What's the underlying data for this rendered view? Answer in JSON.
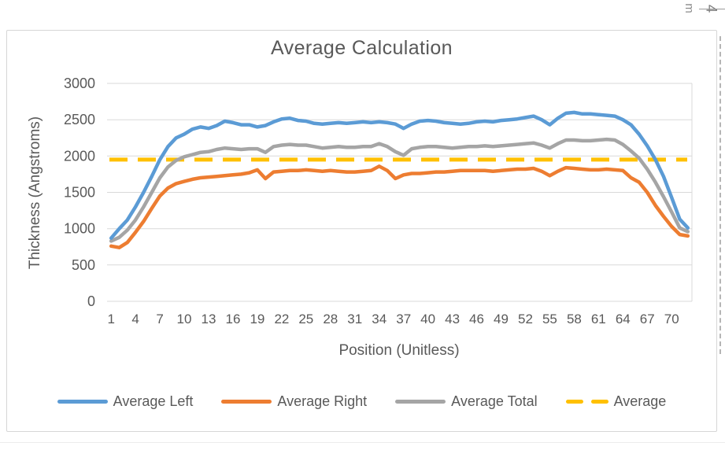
{
  "title": "Average Calculation",
  "y_axis": {
    "label": "Thickness (Angstroms)"
  },
  "x_axis": {
    "label": "Position (Unitless)"
  },
  "legend": {
    "items": [
      {
        "label": "Average Left",
        "color": "#5B9BD5",
        "style": "solid"
      },
      {
        "label": "Average Right",
        "color": "#ED7D31",
        "style": "solid"
      },
      {
        "label": "Average Total",
        "color": "#A5A5A5",
        "style": "solid"
      },
      {
        "label": "Average",
        "color": "#FFC000",
        "style": "dashed"
      }
    ]
  },
  "edge_fragments": {
    "top_left_glyph": "m",
    "top_right_glyph": "4"
  },
  "colors": {
    "text": "#595959",
    "gridline": "#D9D9D9",
    "blue": "#5B9BD5",
    "orange": "#ED7D31",
    "gray": "#A5A5A5",
    "yellow": "#FFC000"
  },
  "chart_data": {
    "type": "line",
    "title": "Average Calculation",
    "xlabel": "Position (Unitless)",
    "ylabel": "Thickness (Angstroms)",
    "ylim": [
      0,
      3000
    ],
    "y_ticks": [
      0,
      500,
      1000,
      1500,
      2000,
      2500,
      3000
    ],
    "grid": "horizontal",
    "legend_position": "bottom",
    "x": [
      1,
      2,
      3,
      4,
      5,
      6,
      7,
      8,
      9,
      10,
      11,
      12,
      13,
      14,
      15,
      16,
      17,
      18,
      19,
      20,
      21,
      22,
      23,
      24,
      25,
      26,
      27,
      28,
      29,
      30,
      31,
      32,
      33,
      34,
      35,
      36,
      37,
      38,
      39,
      40,
      41,
      42,
      43,
      44,
      45,
      46,
      47,
      48,
      49,
      50,
      51,
      52,
      53,
      54,
      55,
      56,
      57,
      58,
      59,
      60,
      61,
      62,
      63,
      64,
      65,
      66,
      67,
      68,
      69,
      70,
      71,
      72
    ],
    "x_tick_labels": [
      1,
      4,
      7,
      10,
      13,
      16,
      19,
      22,
      25,
      28,
      31,
      34,
      37,
      40,
      43,
      46,
      49,
      52,
      55,
      58,
      61,
      64,
      67,
      70
    ],
    "series": [
      {
        "name": "Average Left",
        "color": "#5B9BD5",
        "values": [
          870,
          1000,
          1120,
          1300,
          1500,
          1720,
          1950,
          2130,
          2250,
          2300,
          2370,
          2400,
          2380,
          2420,
          2480,
          2460,
          2430,
          2430,
          2400,
          2420,
          2470,
          2510,
          2520,
          2490,
          2480,
          2450,
          2440,
          2450,
          2460,
          2450,
          2460,
          2470,
          2460,
          2470,
          2460,
          2440,
          2380,
          2440,
          2480,
          2490,
          2480,
          2460,
          2450,
          2440,
          2450,
          2470,
          2480,
          2470,
          2490,
          2500,
          2510,
          2530,
          2550,
          2500,
          2430,
          2520,
          2590,
          2600,
          2580,
          2580,
          2570,
          2560,
          2550,
          2500,
          2430,
          2300,
          2140,
          1950,
          1720,
          1430,
          1130,
          1010
        ]
      },
      {
        "name": "Average Right",
        "color": "#ED7D31",
        "values": [
          760,
          740,
          810,
          950,
          1100,
          1280,
          1450,
          1560,
          1620,
          1650,
          1680,
          1700,
          1710,
          1720,
          1730,
          1740,
          1750,
          1770,
          1810,
          1690,
          1780,
          1790,
          1800,
          1800,
          1810,
          1800,
          1790,
          1800,
          1790,
          1780,
          1780,
          1790,
          1800,
          1860,
          1800,
          1690,
          1740,
          1760,
          1760,
          1770,
          1780,
          1780,
          1790,
          1800,
          1800,
          1800,
          1800,
          1790,
          1800,
          1810,
          1820,
          1820,
          1830,
          1790,
          1730,
          1790,
          1840,
          1830,
          1820,
          1810,
          1810,
          1820,
          1810,
          1800,
          1700,
          1640,
          1500,
          1320,
          1170,
          1030,
          920,
          900
        ]
      },
      {
        "name": "Average Total",
        "color": "#A5A5A5",
        "values": [
          830,
          880,
          980,
          1120,
          1300,
          1500,
          1700,
          1850,
          1940,
          1990,
          2020,
          2050,
          2060,
          2090,
          2110,
          2100,
          2090,
          2100,
          2100,
          2050,
          2130,
          2150,
          2160,
          2150,
          2150,
          2130,
          2110,
          2120,
          2130,
          2120,
          2120,
          2130,
          2130,
          2170,
          2130,
          2060,
          2010,
          2100,
          2120,
          2130,
          2130,
          2120,
          2110,
          2120,
          2130,
          2130,
          2140,
          2130,
          2140,
          2150,
          2160,
          2170,
          2180,
          2150,
          2110,
          2170,
          2220,
          2220,
          2210,
          2210,
          2220,
          2230,
          2220,
          2160,
          2070,
          1970,
          1820,
          1640,
          1440,
          1230,
          1010,
          960
        ]
      },
      {
        "name": "Average",
        "color": "#FFC000",
        "dashed": true,
        "constant": 1950
      }
    ]
  }
}
